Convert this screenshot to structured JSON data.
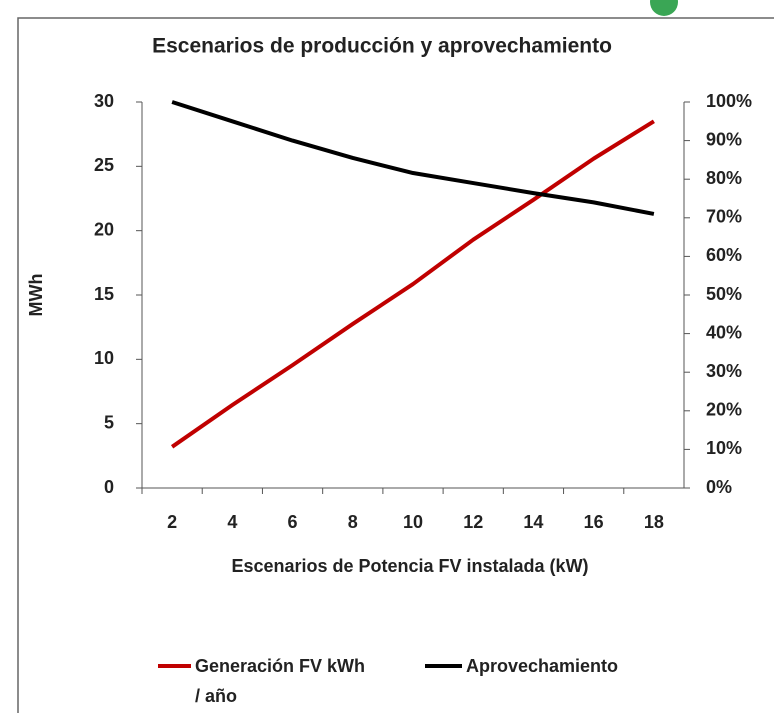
{
  "chart_data": {
    "type": "line",
    "title": "Escenarios de producción y aprovechamiento",
    "xlabel": "Escenarios  de Potencia FV instalada  (kW)",
    "ylabel": "MWh",
    "categories": [
      "2",
      "4",
      "6",
      "8",
      "10",
      "12",
      "14",
      "16",
      "18"
    ],
    "series": [
      {
        "name": "Generación FV kWh / año",
        "color": "#c00000",
        "values": [
          3.2,
          6.45,
          9.55,
          12.75,
          15.85,
          19.3,
          22.4,
          25.6,
          28.5
        ]
      },
      {
        "name": "Aprovechamiento",
        "color": "#000000",
        "axis": "y2",
        "values": [
          100,
          95,
          90,
          85.5,
          81.6,
          79,
          76.4,
          74,
          71
        ]
      }
    ],
    "ylim": [
      0,
      30
    ],
    "yticks": [
      0,
      5,
      10,
      15,
      20,
      25,
      30
    ],
    "y2lim": [
      0,
      100
    ],
    "y2ticks": [
      {
        "value": 0,
        "label": "0%"
      },
      {
        "value": 10,
        "label": "10%"
      },
      {
        "value": 20,
        "label": "20%"
      },
      {
        "value": 30,
        "label": "30%"
      },
      {
        "value": 40,
        "label": "40%"
      },
      {
        "value": 50,
        "label": "50%"
      },
      {
        "value": 60,
        "label": "60%"
      },
      {
        "value": 70,
        "label": "70%"
      },
      {
        "value": 80,
        "label": "80%"
      },
      {
        "value": 90,
        "label": "90%"
      },
      {
        "value": 100,
        "label": "100%"
      }
    ],
    "legend": "bottom",
    "grid": false
  }
}
